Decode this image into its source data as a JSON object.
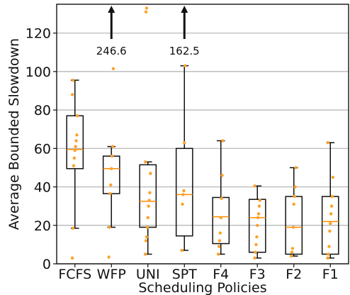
{
  "chart_data": {
    "type": "box",
    "title": "",
    "xlabel": "Scheduling Policies",
    "ylabel": "Average Bounded Slowdown",
    "ylim": [
      0,
      135
    ],
    "yticks": [
      0,
      20,
      40,
      60,
      80,
      100,
      120
    ],
    "grid": "horizontal",
    "colors": {
      "box": "#111111",
      "median": "#ff8c00",
      "points": "#ffa028",
      "grid": "#b0b0b0"
    },
    "categories": [
      "FCFS",
      "WFP",
      "UNI",
      "SPT",
      "F4",
      "F3",
      "F2",
      "F1"
    ],
    "boxes": [
      {
        "whisker_low": 18.5,
        "q1": 49.5,
        "median": 59.5,
        "q3": 77,
        "whisker_high": 95.5
      },
      {
        "whisker_low": 19,
        "q1": 36.5,
        "median": 49.5,
        "q3": 56,
        "whisker_high": 61
      },
      {
        "whisker_low": 5,
        "q1": 19,
        "median": 32.5,
        "q3": 51.5,
        "whisker_high": 53
      },
      {
        "whisker_low": 7,
        "q1": 14.5,
        "median": 36,
        "q3": 60,
        "whisker_high": 103
      },
      {
        "whisker_low": 5,
        "q1": 10.5,
        "median": 24.5,
        "q3": 34.5,
        "whisker_high": 64
      },
      {
        "whisker_low": 3,
        "q1": 6,
        "median": 24,
        "q3": 33.5,
        "whisker_high": 40.5
      },
      {
        "whisker_low": 4,
        "q1": 5,
        "median": 19,
        "q3": 35,
        "whisker_high": 50
      },
      {
        "whisker_low": 3,
        "q1": 5,
        "median": 22,
        "q3": 35,
        "whisker_high": 63
      }
    ],
    "points": [
      [
        3,
        18.5,
        51,
        55,
        59,
        61,
        64,
        67,
        77,
        88,
        95.5
      ],
      [
        3.5,
        19,
        36.5,
        41,
        49.5,
        56,
        61,
        101.5
      ],
      [
        5,
        12,
        14,
        19,
        24,
        30,
        33,
        37,
        47,
        53,
        131,
        133
      ],
      [
        7,
        31,
        36,
        38,
        63,
        103
      ],
      [
        5,
        9,
        12,
        16,
        24,
        34,
        46,
        64
      ],
      [
        3,
        6,
        10,
        14,
        20,
        24,
        26,
        30,
        33,
        40.5
      ],
      [
        4,
        6,
        8,
        19,
        31,
        35,
        40,
        50
      ],
      [
        3,
        5,
        9,
        17,
        21,
        26,
        30,
        35,
        45,
        63
      ]
    ],
    "annotations": [
      {
        "category": "WFP",
        "value_text": "246.6"
      },
      {
        "category": "SPT",
        "value_text": "162.5"
      }
    ]
  }
}
